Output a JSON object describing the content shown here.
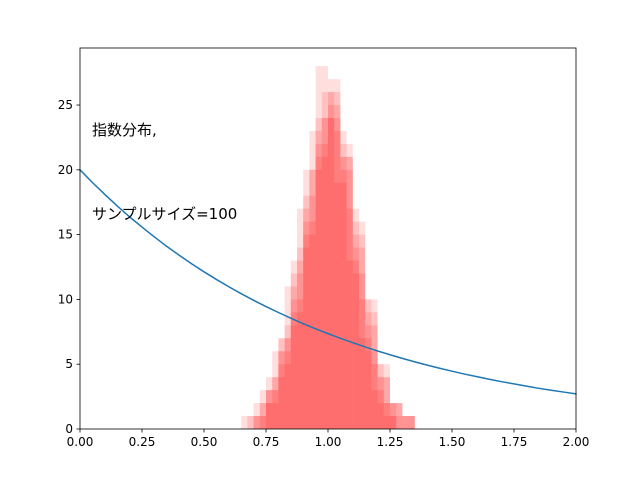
{
  "figure": {
    "background": "#ffffff"
  },
  "chart_data": {
    "type": "line+histogram-overlay",
    "title": "",
    "annotation": [
      "指数分布,",
      "サンプルサイズ=100"
    ],
    "xlabel": "",
    "ylabel": "",
    "xlim": [
      0,
      2
    ],
    "ylim": [
      0,
      29.4
    ],
    "grid": false,
    "legend": null,
    "xticks": {
      "values": [
        0,
        0.25,
        0.5,
        0.75,
        1.0,
        1.25,
        1.5,
        1.75,
        2.0
      ],
      "labels": [
        "0.00",
        "0.25",
        "0.50",
        "0.75",
        "1.00",
        "1.25",
        "1.50",
        "1.75",
        "2.00"
      ]
    },
    "yticks": {
      "values": [
        0,
        5,
        10,
        15,
        20,
        25
      ],
      "labels": [
        "0",
        "5",
        "10",
        "15",
        "20",
        "25"
      ]
    },
    "line": {
      "name": "exponential-density-curve",
      "formula": "y = 20 * exp(-x)",
      "color": "#1f77b4",
      "width": 1.5,
      "x": [
        0,
        0.05,
        0.1,
        0.15,
        0.2,
        0.25,
        0.3,
        0.35,
        0.4,
        0.45,
        0.5,
        0.55,
        0.6,
        0.65,
        0.7,
        0.75,
        0.8,
        0.85,
        0.9,
        0.95,
        1.0,
        1.05,
        1.1,
        1.15,
        1.2,
        1.25,
        1.3,
        1.35,
        1.4,
        1.45,
        1.5,
        1.55,
        1.6,
        1.65,
        1.7,
        1.75,
        1.8,
        1.85,
        1.9,
        1.95,
        2.0
      ],
      "y": [
        20.0,
        19.02,
        18.1,
        17.21,
        16.37,
        15.58,
        14.82,
        14.09,
        13.41,
        12.75,
        12.13,
        11.54,
        10.98,
        10.44,
        9.93,
        9.45,
        8.99,
        8.55,
        8.13,
        7.73,
        7.36,
        7.0,
        6.66,
        6.33,
        6.02,
        5.73,
        5.45,
        5.18,
        4.93,
        4.69,
        4.46,
        4.24,
        4.04,
        3.84,
        3.65,
        3.48,
        3.31,
        3.14,
        2.99,
        2.85,
        2.71
      ]
    },
    "histogram": {
      "name": "sample-mean-histograms",
      "color": "#ff0000",
      "alpha": 0.13,
      "bin_width": 0.05,
      "layers": [
        {
          "start": 0.7,
          "heights": [
            1,
            2,
            5,
            9,
            15,
            21,
            24,
            22,
            16,
            10,
            5,
            2,
            1
          ]
        },
        {
          "start": 0.675,
          "heights": [
            1,
            3,
            6,
            11,
            17,
            23,
            24,
            19,
            13,
            7,
            3,
            1
          ]
        },
        {
          "start": 0.725,
          "heights": [
            2,
            4,
            8,
            14,
            20,
            26,
            23,
            17,
            10,
            5,
            2
          ]
        },
        {
          "start": 0.65,
          "heights": [
            1,
            2,
            4,
            7,
            12,
            18,
            24,
            26,
            21,
            14,
            8,
            4,
            2,
            1
          ]
        },
        {
          "start": 0.75,
          "heights": [
            3,
            7,
            13,
            20,
            28,
            27,
            20,
            12,
            6,
            2,
            1,
            1
          ]
        },
        {
          "start": 0.7,
          "heights": [
            1,
            3,
            6,
            10,
            16,
            22,
            25,
            21,
            15,
            9,
            4,
            2,
            1
          ]
        }
      ]
    }
  }
}
